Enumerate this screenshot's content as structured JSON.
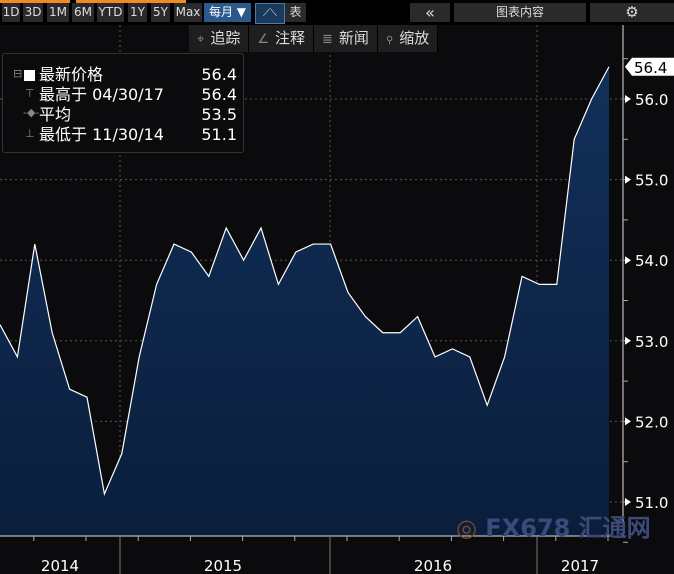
{
  "toolbar": {
    "ranges": [
      "1D",
      "3D",
      "1M",
      "6M",
      "YTD",
      "1Y",
      "5Y",
      "Max"
    ],
    "period": "每月 ▼",
    "table_label": "表",
    "collapse": "«",
    "chart_content": "图表内容",
    "settings_icon": "gear-icon"
  },
  "tools": [
    {
      "icon": "⌖",
      "label": "追踪"
    },
    {
      "icon": "∠",
      "label": "注释"
    },
    {
      "icon": "≣",
      "label": "新闻"
    },
    {
      "icon": "🔍",
      "label": "缩放"
    }
  ],
  "legend": {
    "latest_label": "最新价格",
    "latest_value": "56.4",
    "high_label": "最高于 04/30/17",
    "high_value": "56.4",
    "avg_label": "平均",
    "avg_value": "53.5",
    "low_label": "最低于 11/30/14",
    "low_value": "51.1"
  },
  "watermark": "FX678 汇通网",
  "colors": {
    "fill": "#0f2a4a",
    "line": "#ffffff",
    "background": "#0b0b0d"
  },
  "chart_data": {
    "type": "area",
    "x": [
      "2014-05",
      "2014-06",
      "2014-07",
      "2014-08",
      "2014-09",
      "2014-10",
      "2014-11",
      "2014-12",
      "2015-01",
      "2015-02",
      "2015-03",
      "2015-04",
      "2015-05",
      "2015-06",
      "2015-07",
      "2015-08",
      "2015-09",
      "2015-10",
      "2015-11",
      "2015-12",
      "2016-01",
      "2016-02",
      "2016-03",
      "2016-04",
      "2016-05",
      "2016-06",
      "2016-07",
      "2016-08",
      "2016-09",
      "2016-10",
      "2016-11",
      "2016-12",
      "2017-01",
      "2017-02",
      "2017-03",
      "2017-04"
    ],
    "values": [
      53.2,
      52.8,
      54.2,
      53.1,
      52.4,
      52.3,
      51.1,
      51.6,
      52.8,
      53.7,
      54.2,
      54.1,
      53.8,
      54.4,
      54.0,
      54.4,
      53.7,
      54.1,
      54.2,
      54.2,
      53.6,
      53.3,
      53.1,
      53.1,
      53.3,
      52.8,
      52.9,
      52.8,
      52.2,
      52.8,
      53.8,
      53.7,
      53.7,
      55.5,
      56.0,
      56.4
    ],
    "ylim": [
      50.6,
      57.0
    ],
    "yticks": [
      "51.0",
      "52.0",
      "53.0",
      "54.0",
      "55.0",
      "56.0"
    ],
    "xticks": [
      "2014",
      "2015",
      "2016",
      "2017"
    ],
    "last_value_label": "56.4",
    "grid": true,
    "legend": "top-left",
    "axis": "right"
  }
}
